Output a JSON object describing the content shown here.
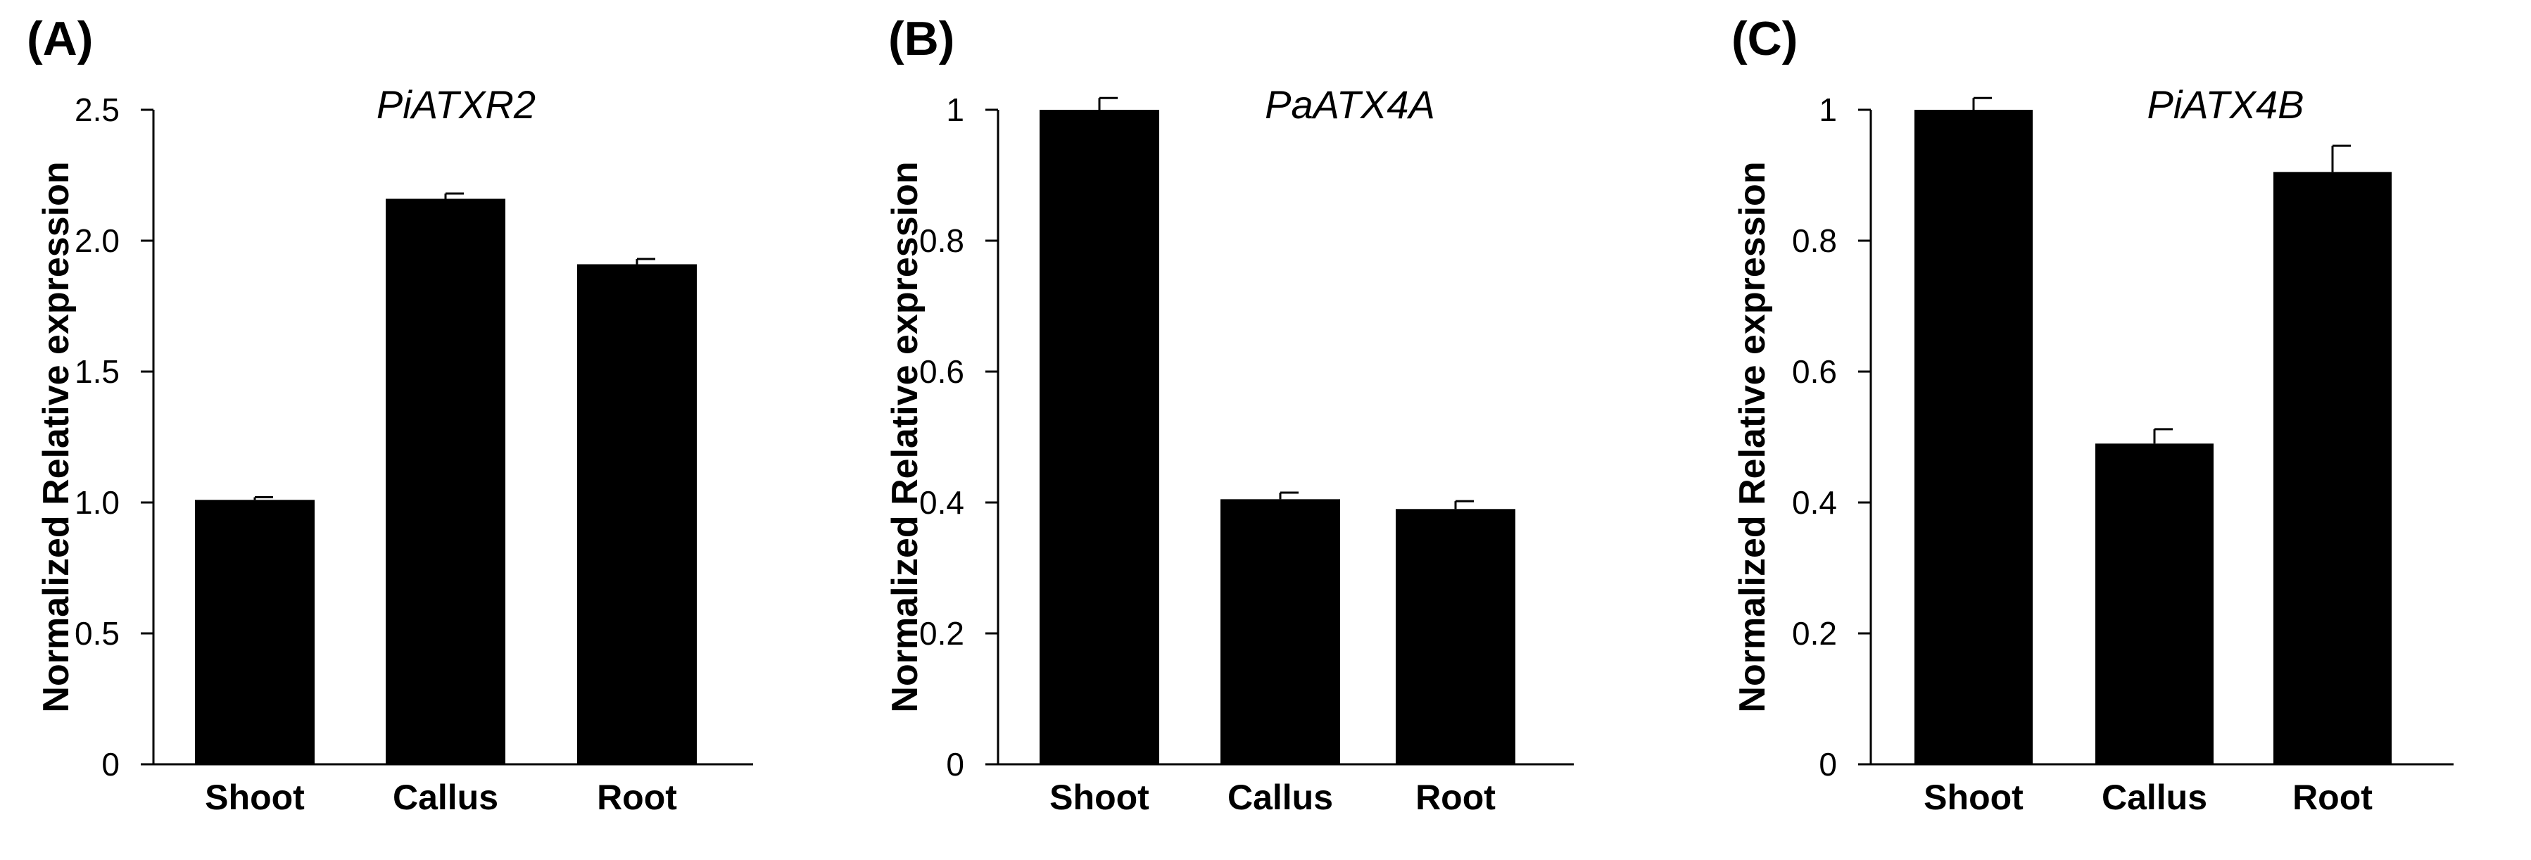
{
  "chart_data": [
    {
      "type": "bar",
      "panel": "(A)",
      "title": "PiATXR2",
      "ylabel": "Normalized Relative expression",
      "xlabel": "",
      "categories": [
        "Shoot",
        "Callus",
        "Root"
      ],
      "values": [
        1.01,
        2.16,
        1.91
      ],
      "errors": [
        0.01,
        0.02,
        0.02
      ],
      "ylim": [
        0,
        2.5
      ],
      "yticks": [
        0,
        0.5,
        1.0,
        1.5,
        2.0,
        2.5
      ],
      "ytick_labels": [
        "0",
        "0.5",
        "1.0",
        "1.5",
        "2.0",
        "2.5"
      ],
      "bar_color": "#000000",
      "grid": false,
      "legend": "none"
    },
    {
      "type": "bar",
      "panel": "(B)",
      "title": "PaATX4A",
      "ylabel": "Normalized Relative  expression",
      "xlabel": "",
      "categories": [
        "Shoot",
        "Callus",
        "Root"
      ],
      "values": [
        1.0,
        0.405,
        0.39
      ],
      "errors": [
        0.018,
        0.01,
        0.012
      ],
      "ylim": [
        0,
        1
      ],
      "yticks": [
        0,
        0.2,
        0.4,
        0.6,
        0.8,
        1
      ],
      "ytick_labels": [
        "0",
        "0.2",
        "0.4",
        "0.6",
        "0.8",
        "1"
      ],
      "bar_color": "#000000",
      "grid": false,
      "legend": "none"
    },
    {
      "type": "bar",
      "panel": "(C)",
      "title": "PiATX4B",
      "ylabel": "Normalized Relative expression",
      "xlabel": "",
      "categories": [
        "Shoot",
        "Callus",
        "Root"
      ],
      "values": [
        1.0,
        0.49,
        0.905
      ],
      "errors": [
        0.018,
        0.022,
        0.04
      ],
      "ylim": [
        0,
        1
      ],
      "yticks": [
        0,
        0.2,
        0.4,
        0.6,
        0.8,
        1
      ],
      "ytick_labels": [
        "0",
        "0.2",
        "0.4",
        "0.6",
        "0.8",
        "1"
      ],
      "bar_color": "#000000",
      "grid": false,
      "legend": "none"
    }
  ]
}
